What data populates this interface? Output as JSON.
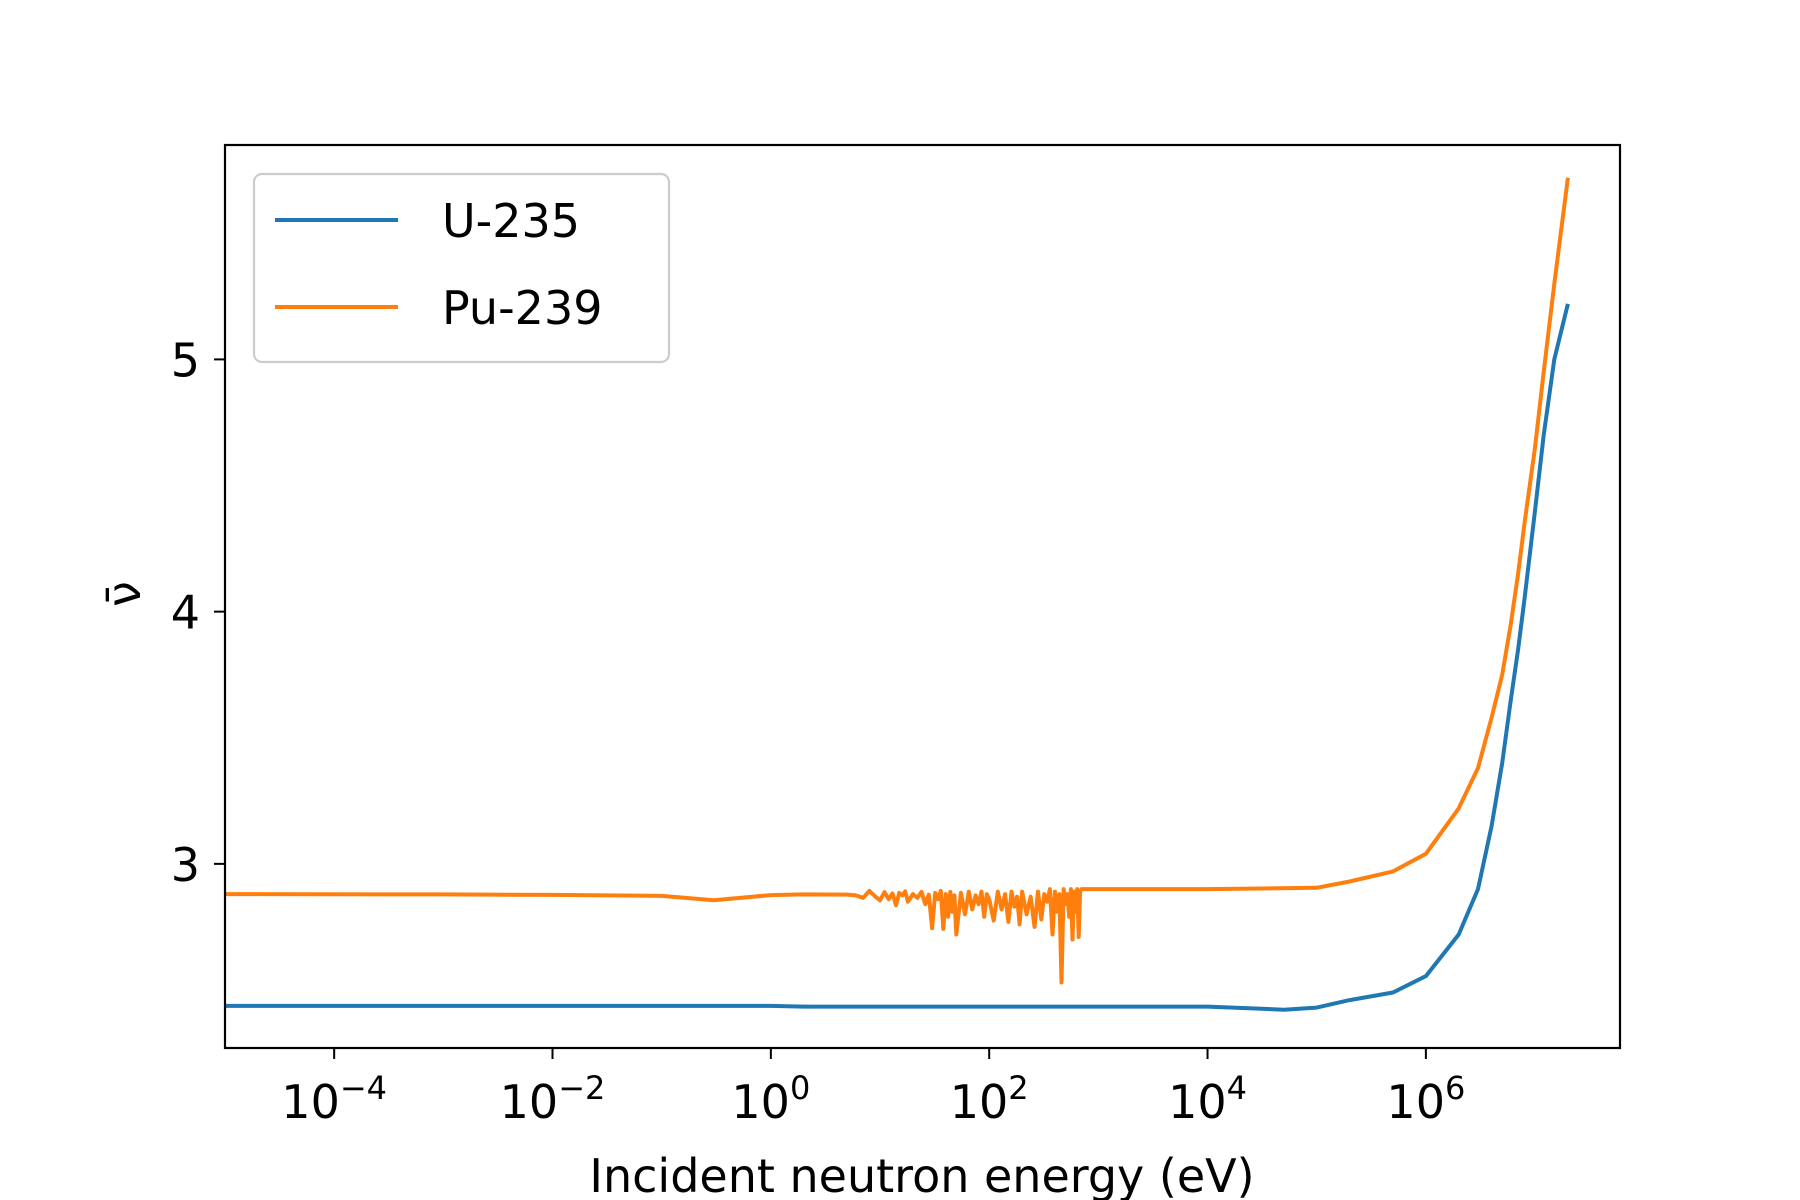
{
  "chart_data": {
    "type": "line",
    "xscale": "log",
    "xlabel": "Incident neutron energy (eV)",
    "ylabel": "ν̄",
    "xlim": [
      1e-05,
      60000000.0
    ],
    "ylim": [
      2.27,
      5.85
    ],
    "xticks": [
      {
        "base": "10",
        "exp": "−4",
        "value": 0.0001
      },
      {
        "base": "10",
        "exp": "−2",
        "value": 0.01
      },
      {
        "base": "10",
        "exp": "0",
        "value": 1
      },
      {
        "base": "10",
        "exp": "2",
        "value": 100
      },
      {
        "base": "10",
        "exp": "4",
        "value": 10000
      },
      {
        "base": "10",
        "exp": "6",
        "value": 1000000
      }
    ],
    "yticks": [
      3,
      4,
      5
    ],
    "legend": {
      "position": "top-left"
    },
    "grid": false,
    "series": [
      {
        "name": "U-235",
        "color": "#1f77b4",
        "x": [
          1e-05,
          0.001,
          0.1,
          1,
          2,
          10,
          100,
          1000,
          10000,
          50000,
          100000,
          200000,
          500000,
          1000000,
          2000000,
          3000000,
          4000000,
          5000000,
          6000000,
          7000000,
          8000000,
          10000000,
          12000000,
          15000000,
          20000000
        ],
        "y": [
          2.437,
          2.437,
          2.437,
          2.437,
          2.434,
          2.434,
          2.434,
          2.434,
          2.434,
          2.422,
          2.43,
          2.46,
          2.49,
          2.555,
          2.72,
          2.9,
          3.15,
          3.4,
          3.65,
          3.85,
          4.05,
          4.4,
          4.7,
          5.0,
          5.22
        ]
      },
      {
        "name": "Pu-239",
        "color": "#ff7f0e",
        "x": [
          1e-05,
          0.001,
          0.01,
          0.1,
          0.3,
          1,
          2,
          5,
          6,
          7,
          8,
          9,
          10,
          11,
          12,
          13,
          14,
          15,
          16,
          17,
          18,
          20,
          22,
          24,
          26,
          28,
          30,
          32,
          34,
          36,
          38,
          40,
          42,
          44,
          46,
          48,
          50,
          55,
          60,
          65,
          70,
          75,
          80,
          85,
          90,
          95,
          100,
          110,
          120,
          130,
          140,
          150,
          160,
          170,
          180,
          190,
          200,
          220,
          240,
          260,
          280,
          300,
          320,
          340,
          360,
          380,
          400,
          420,
          440,
          460,
          480,
          500,
          520,
          540,
          560,
          580,
          600,
          620,
          640,
          660,
          680,
          700,
          1000,
          10000,
          100000,
          200000,
          500000,
          1000000,
          2000000,
          3000000,
          4000000,
          5000000,
          6000000,
          7000000,
          8000000,
          10000000,
          12000000,
          15000000,
          20000000
        ],
        "y": [
          2.88,
          2.879,
          2.877,
          2.873,
          2.856,
          2.876,
          2.879,
          2.878,
          2.875,
          2.865,
          2.893,
          2.872,
          2.855,
          2.888,
          2.86,
          2.883,
          2.836,
          2.885,
          2.875,
          2.891,
          2.85,
          2.88,
          2.865,
          2.889,
          2.84,
          2.878,
          2.745,
          2.885,
          2.86,
          2.893,
          2.742,
          2.88,
          2.79,
          2.889,
          2.81,
          2.875,
          2.72,
          2.885,
          2.8,
          2.89,
          2.82,
          2.875,
          2.84,
          2.89,
          2.79,
          2.88,
          2.86,
          2.775,
          2.89,
          2.82,
          2.88,
          2.77,
          2.89,
          2.83,
          2.87,
          2.76,
          2.89,
          2.8,
          2.87,
          2.75,
          2.89,
          2.78,
          2.88,
          2.85,
          2.9,
          2.72,
          2.89,
          2.81,
          2.88,
          2.53,
          2.9,
          2.84,
          2.88,
          2.79,
          2.9,
          2.7,
          2.89,
          2.81,
          2.9,
          2.71,
          2.89,
          2.9,
          2.9,
          2.9,
          2.905,
          2.93,
          2.97,
          3.04,
          3.22,
          3.38,
          3.58,
          3.75,
          3.95,
          4.15,
          4.35,
          4.65,
          4.95,
          5.3,
          5.72
        ]
      }
    ]
  }
}
